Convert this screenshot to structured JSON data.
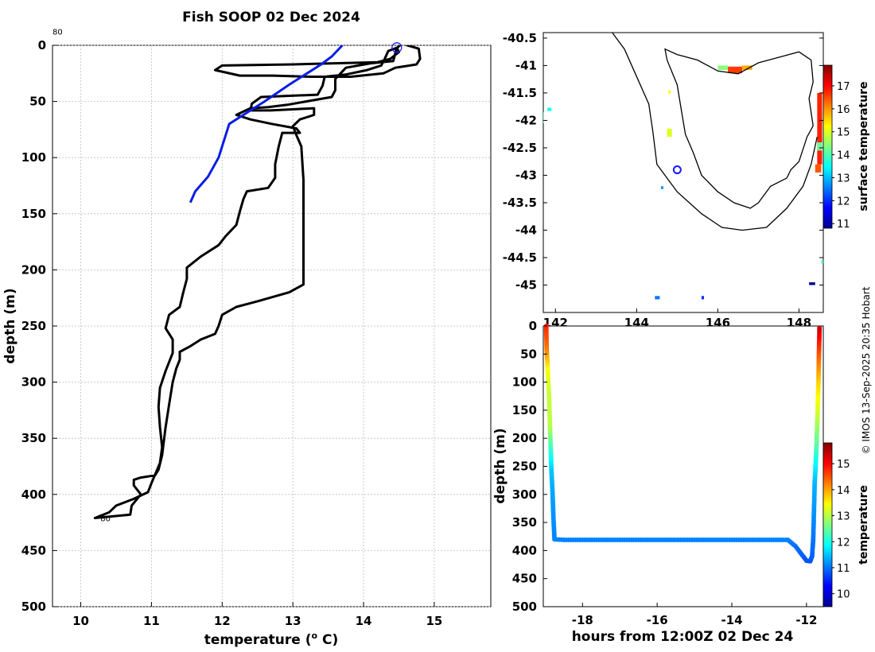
{
  "credit": "© IMOS 13-Sep-2025 20:35 Hobart",
  "colors": {
    "profile": "#000000",
    "climatology": "#0a1ee6",
    "grid": "#bdbdbd",
    "marker": "#1a1aff"
  },
  "chart_data": [
    {
      "id": "profile",
      "type": "line",
      "title": "Fish SOOP 02 Dec 2024",
      "xlabel": "temperature (",
      "xlabel_sup": "o",
      "xlabel_tail": " C)",
      "ylabel": "depth (m)",
      "xlim": [
        9.6,
        15.8
      ],
      "ylim": [
        0,
        500
      ],
      "y_reversed": true,
      "xticks": [
        "10",
        "11",
        "12",
        "13",
        "14",
        "15"
      ],
      "yticks": [
        "0",
        "50",
        "100",
        "150",
        "200",
        "250",
        "300",
        "350",
        "400",
        "450",
        "500"
      ],
      "grid": true,
      "labels": [
        {
          "text": "80",
          "x": 9.6,
          "y": -11
        },
        {
          "text": "80",
          "x": 10.3,
          "y": 421
        }
      ],
      "start_marker": {
        "x": 14.47,
        "y": 2
      },
      "series": [
        {
          "name": "profile",
          "color": "#000000",
          "points": [
            [
              14.47,
              2
            ],
            [
              14.5,
              6
            ],
            [
              14.38,
              12
            ],
            [
              14.2,
              15
            ],
            [
              13.0,
              17
            ],
            [
              12.0,
              18
            ],
            [
              11.9,
              22
            ],
            [
              12.25,
              27
            ],
            [
              12.72,
              27
            ],
            [
              13.25,
              28
            ],
            [
              13.82,
              28
            ],
            [
              14.28,
              25
            ],
            [
              14.45,
              20
            ],
            [
              14.75,
              17
            ],
            [
              14.8,
              12
            ],
            [
              14.78,
              3
            ],
            [
              14.62,
              0
            ],
            [
              14.55,
              -2
            ],
            [
              14.48,
              2
            ],
            [
              14.35,
              5
            ],
            [
              14.3,
              12
            ],
            [
              14.25,
              18
            ],
            [
              14.05,
              22
            ],
            [
              13.75,
              26
            ],
            [
              13.45,
              28
            ],
            [
              13.42,
              36
            ],
            [
              13.35,
              44
            ],
            [
              12.95,
              45
            ],
            [
              12.55,
              46
            ],
            [
              12.42,
              52
            ],
            [
              12.4,
              58
            ],
            [
              12.68,
              58
            ],
            [
              13.0,
              57
            ],
            [
              13.3,
              56
            ],
            [
              13.3,
              62
            ],
            [
              13.1,
              66
            ],
            [
              13.0,
              72
            ],
            [
              13.05,
              80
            ],
            [
              13.12,
              90
            ],
            [
              13.15,
              120
            ],
            [
              13.15,
              200
            ],
            [
              13.15,
              213
            ],
            [
              12.95,
              220
            ],
            [
              12.5,
              228
            ],
            [
              12.2,
              233
            ],
            [
              12.0,
              240
            ],
            [
              11.95,
              250
            ],
            [
              11.9,
              257
            ],
            [
              11.7,
              262
            ],
            [
              11.55,
              268
            ],
            [
              11.4,
              273
            ],
            [
              11.4,
              280
            ],
            [
              11.35,
              288
            ],
            [
              11.3,
              300
            ],
            [
              11.25,
              320
            ],
            [
              11.2,
              340
            ],
            [
              11.15,
              365
            ],
            [
              11.1,
              378
            ],
            [
              11.05,
              383
            ],
            [
              10.85,
              385
            ],
            [
              10.75,
              387
            ],
            [
              10.75,
              392
            ],
            [
              10.85,
              400
            ],
            [
              10.72,
              410
            ],
            [
              10.7,
              418
            ],
            [
              10.2,
              421
            ],
            [
              10.4,
              416
            ],
            [
              10.5,
              410
            ],
            [
              10.75,
              404
            ],
            [
              10.95,
              398
            ],
            [
              11.0,
              390
            ],
            [
              11.12,
              372
            ],
            [
              11.15,
              358
            ],
            [
              11.12,
              340
            ],
            [
              11.1,
              322
            ],
            [
              11.12,
              305
            ],
            [
              11.2,
              290
            ],
            [
              11.3,
              274
            ],
            [
              11.3,
              262
            ],
            [
              11.2,
              252
            ],
            [
              11.25,
              240
            ],
            [
              11.4,
              233
            ],
            [
              11.45,
              220
            ],
            [
              11.5,
              208
            ],
            [
              11.5,
              198
            ],
            [
              11.7,
              188
            ],
            [
              11.95,
              178
            ],
            [
              12.05,
              170
            ],
            [
              12.2,
              160
            ],
            [
              12.25,
              148
            ],
            [
              12.3,
              137
            ],
            [
              12.35,
              130
            ],
            [
              12.65,
              127
            ],
            [
              12.75,
              118
            ],
            [
              12.75,
              106
            ],
            [
              12.8,
              90
            ],
            [
              12.85,
              78
            ],
            [
              13.1,
              78
            ],
            [
              13.05,
              74
            ],
            [
              12.7,
              70
            ],
            [
              12.4,
              66
            ],
            [
              12.2,
              62
            ],
            [
              12.4,
              56
            ],
            [
              12.65,
              55
            ],
            [
              12.92,
              53
            ],
            [
              13.55,
              46
            ],
            [
              13.6,
              40
            ],
            [
              13.6,
              30
            ],
            [
              13.75,
              20
            ],
            [
              14.1,
              16
            ],
            [
              14.42,
              14
            ],
            [
              14.47,
              2
            ]
          ]
        },
        {
          "name": "climatology",
          "color": "#0a1ee6",
          "points": [
            [
              13.7,
              0
            ],
            [
              13.55,
              10
            ],
            [
              13.4,
              17
            ],
            [
              13.2,
              25
            ],
            [
              12.95,
              35
            ],
            [
              12.6,
              50
            ],
            [
              12.3,
              62
            ],
            [
              12.1,
              70
            ],
            [
              12.05,
              80
            ],
            [
              11.95,
              100
            ],
            [
              11.8,
              117
            ],
            [
              11.62,
              130
            ],
            [
              11.55,
              140
            ]
          ]
        }
      ]
    },
    {
      "id": "sst_map",
      "type": "heatmap",
      "xlim": [
        141.7,
        148.6
      ],
      "ylim": [
        -45.5,
        -40.4
      ],
      "xticks": [
        "142",
        "144",
        "146",
        "148"
      ],
      "yticks": [
        "-40.5",
        "-41",
        "-41.5",
        "-42",
        "-42.5",
        "-43",
        "-43.5",
        "-44",
        "-44.5",
        "-45"
      ],
      "colorbar": {
        "label": "surface temperature",
        "range": [
          10.8,
          17.9
        ],
        "ticks": [
          "11",
          "12",
          "13",
          "14",
          "15",
          "16",
          "17"
        ]
      },
      "station": {
        "lon": 145.0,
        "lat": -42.9
      },
      "sst_cells": [
        {
          "lon": 146.0,
          "lat": -41.0,
          "w": 0.25,
          "h": 0.08,
          "v": 14.4
        },
        {
          "lon": 146.25,
          "lat": -41.02,
          "w": 0.35,
          "h": 0.12,
          "v": 16.6
        },
        {
          "lon": 146.6,
          "lat": -41.0,
          "w": 0.25,
          "h": 0.08,
          "v": 15.8
        },
        {
          "lon": 148.45,
          "lat": -41.5,
          "w": 0.12,
          "h": 1.3,
          "v": 16.8
        },
        {
          "lon": 148.45,
          "lat": -42.4,
          "w": 0.12,
          "h": 0.15,
          "v": 14.2
        },
        {
          "lon": 148.4,
          "lat": -42.8,
          "w": 0.15,
          "h": 0.15,
          "v": 16.4
        },
        {
          "lon": 144.75,
          "lat": -42.15,
          "w": 0.12,
          "h": 0.15,
          "v": 15.0
        },
        {
          "lon": 144.78,
          "lat": -41.45,
          "w": 0.06,
          "h": 0.06,
          "v": 15.2
        },
        {
          "lon": 141.65,
          "lat": -41.85,
          "w": 0.06,
          "h": 0.2,
          "v": 13.7
        },
        {
          "lon": 141.8,
          "lat": -41.77,
          "w": 0.1,
          "h": 0.06,
          "v": 13.6
        },
        {
          "lon": 144.45,
          "lat": -45.2,
          "w": 0.12,
          "h": 0.06,
          "v": 12.5
        },
        {
          "lon": 145.6,
          "lat": -45.2,
          "w": 0.06,
          "h": 0.06,
          "v": 12.0
        },
        {
          "lon": 148.25,
          "lat": -44.95,
          "w": 0.15,
          "h": 0.05,
          "v": 11.0
        },
        {
          "lon": 148.55,
          "lat": -44.55,
          "w": 0.06,
          "h": 0.06,
          "v": 13.9
        },
        {
          "lon": 144.6,
          "lat": -43.2,
          "w": 0.05,
          "h": 0.05,
          "v": 12.7
        }
      ],
      "coastline": [
        [
          144.7,
          -40.7
        ],
        [
          145.0,
          -40.8
        ],
        [
          145.5,
          -40.9
        ],
        [
          146.0,
          -41.1
        ],
        [
          146.5,
          -41.15
        ],
        [
          147.0,
          -40.95
        ],
        [
          147.5,
          -40.85
        ],
        [
          148.0,
          -40.75
        ],
        [
          148.3,
          -40.9
        ],
        [
          148.35,
          -41.3
        ],
        [
          148.25,
          -41.6
        ],
        [
          148.35,
          -42.1
        ],
        [
          148.2,
          -42.3
        ],
        [
          148.0,
          -42.75
        ],
        [
          147.8,
          -42.9
        ],
        [
          147.7,
          -43.05
        ],
        [
          147.3,
          -43.2
        ],
        [
          147.0,
          -43.5
        ],
        [
          146.8,
          -43.6
        ],
        [
          146.4,
          -43.5
        ],
        [
          146.0,
          -43.3
        ],
        [
          145.6,
          -43.0
        ],
        [
          145.4,
          -42.6
        ],
        [
          145.2,
          -42.25
        ],
        [
          145.1,
          -41.8
        ],
        [
          145.0,
          -41.35
        ],
        [
          144.75,
          -40.9
        ],
        [
          144.7,
          -40.7
        ]
      ],
      "shelf": [
        [
          143.4,
          -40.4
        ],
        [
          143.7,
          -40.7
        ],
        [
          144.0,
          -41.2
        ],
        [
          144.3,
          -41.7
        ],
        [
          144.4,
          -42.2
        ],
        [
          144.5,
          -42.8
        ],
        [
          145.0,
          -43.3
        ],
        [
          145.6,
          -43.7
        ],
        [
          146.1,
          -43.95
        ],
        [
          146.6,
          -44.0
        ],
        [
          147.2,
          -43.95
        ],
        [
          147.7,
          -43.6
        ],
        [
          148.1,
          -43.2
        ],
        [
          148.3,
          -42.8
        ],
        [
          148.45,
          -42.3
        ]
      ]
    },
    {
      "id": "track",
      "type": "scatter",
      "xlabel": "hours from 12:00Z 02 Dec 24",
      "ylabel": "depth (m)",
      "xlim": [
        -19.05,
        -11.55
      ],
      "ylim": [
        0,
        500
      ],
      "y_reversed": true,
      "xticks": [
        "-18",
        "-16",
        "-14",
        "-12"
      ],
      "yticks": [
        "0",
        "50",
        "100",
        "150",
        "200",
        "250",
        "300",
        "350",
        "400",
        "450",
        "500"
      ],
      "colorbar": {
        "label": "temperature",
        "range": [
          9.5,
          15.8
        ],
        "ticks": [
          "10",
          "11",
          "12",
          "13",
          "14",
          "15"
        ]
      },
      "knots": [
        [
          -18.97,
          0,
          14.8
        ],
        [
          -18.96,
          40,
          14.3
        ],
        [
          -18.93,
          80,
          13.4
        ],
        [
          -18.9,
          120,
          13.1
        ],
        [
          -18.87,
          180,
          13.0
        ],
        [
          -18.85,
          220,
          12.2
        ],
        [
          -18.83,
          260,
          11.5
        ],
        [
          -18.8,
          300,
          11.3
        ],
        [
          -18.78,
          340,
          11.2
        ],
        [
          -18.75,
          380,
          11.1
        ],
        [
          -18.5,
          381,
          11.1
        ],
        [
          -17.0,
          381,
          11.1
        ],
        [
          -15.0,
          381,
          11.1
        ],
        [
          -13.5,
          381,
          11.1
        ],
        [
          -12.5,
          381,
          11.1
        ],
        [
          -12.3,
          392,
          11.0
        ],
        [
          -12.15,
          405,
          10.9
        ],
        [
          -12.0,
          418,
          10.8
        ],
        [
          -11.9,
          419,
          10.8
        ],
        [
          -11.85,
          410,
          10.9
        ],
        [
          -11.82,
          380,
          11.0
        ],
        [
          -11.8,
          330,
          11.2
        ],
        [
          -11.78,
          280,
          11.4
        ],
        [
          -11.75,
          240,
          11.9
        ],
        [
          -11.73,
          210,
          12.4
        ],
        [
          -11.7,
          150,
          13.2
        ],
        [
          -11.68,
          100,
          13.7
        ],
        [
          -11.67,
          60,
          14.3
        ],
        [
          -11.66,
          30,
          14.8
        ],
        [
          -11.65,
          0,
          15.4
        ]
      ]
    }
  ]
}
